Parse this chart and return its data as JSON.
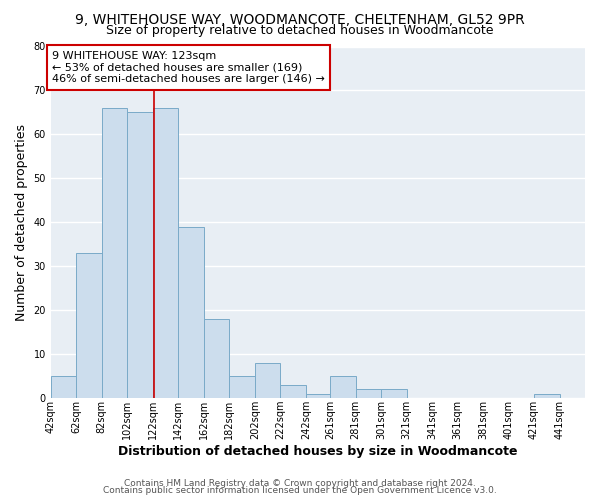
{
  "title": "9, WHITEHOUSE WAY, WOODMANCOTE, CHELTENHAM, GL52 9PR",
  "subtitle": "Size of property relative to detached houses in Woodmancote",
  "xlabel": "Distribution of detached houses by size in Woodmancote",
  "ylabel": "Number of detached properties",
  "bar_color": "#ccdded",
  "bar_edge_color": "#7aaac8",
  "background_color": "#e8eef4",
  "grid_color": "#ffffff",
  "vline_x": 123,
  "vline_color": "#cc0000",
  "annotation_text": "9 WHITEHOUSE WAY: 123sqm\n← 53% of detached houses are smaller (169)\n46% of semi-detached houses are larger (146) →",
  "annotation_box_color": "#ffffff",
  "annotation_box_edge_color": "#cc0000",
  "bins_left_edges": [
    42,
    62,
    82,
    102,
    122,
    142,
    162,
    182,
    202,
    222,
    242,
    261,
    281,
    301,
    321,
    341,
    361,
    381,
    401,
    421,
    441
  ],
  "bin_width": 20,
  "bar_heights": [
    5,
    33,
    66,
    65,
    66,
    39,
    18,
    5,
    8,
    3,
    1,
    5,
    2,
    2,
    0,
    0,
    0,
    0,
    0,
    1,
    0
  ],
  "ylim": [
    0,
    80
  ],
  "yticks": [
    0,
    10,
    20,
    30,
    40,
    50,
    60,
    70,
    80
  ],
  "footer_line1": "Contains HM Land Registry data © Crown copyright and database right 2024.",
  "footer_line2": "Contains public sector information licensed under the Open Government Licence v3.0.",
  "title_fontsize": 10,
  "subtitle_fontsize": 9,
  "axis_label_fontsize": 9,
  "tick_fontsize": 7,
  "annotation_fontsize": 8,
  "footer_fontsize": 6.5
}
